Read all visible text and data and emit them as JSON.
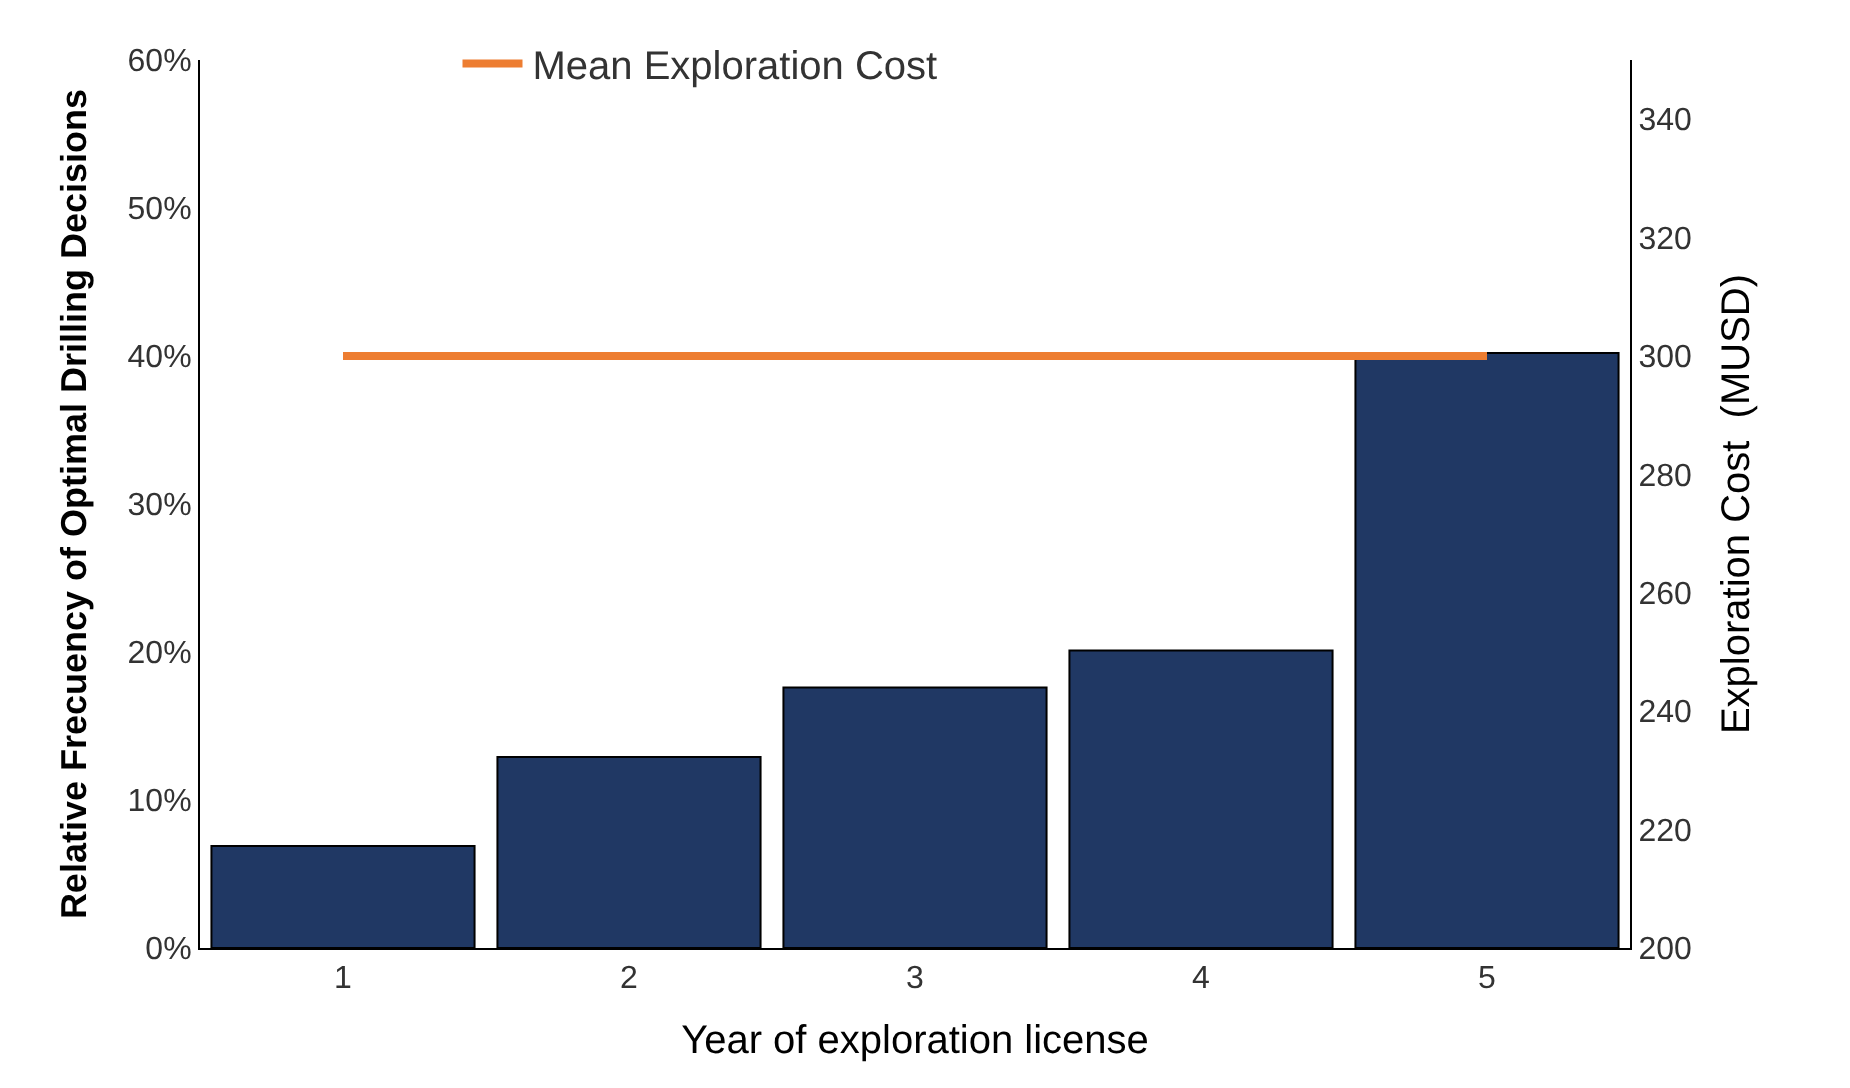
{
  "chart_data": {
    "type": "bar",
    "xlabel": "Year of exploration license",
    "ylabel": "Relative Frecuency of Optimal Drilling Decisions",
    "y2label": "Exploration Cost  (MUSD)",
    "categories": [
      "1",
      "2",
      "3",
      "4",
      "5"
    ],
    "series": [
      {
        "color": "#203864",
        "values": [
          0.069,
          0.129,
          0.176,
          0.201,
          0.402
        ]
      },
      {
        "name": "Mean Exploration Cost",
        "type": "line",
        "axis": "y2",
        "color": "#ed7d31",
        "values": [
          300,
          300,
          300,
          300,
          300
        ]
      }
    ],
    "ylim": [
      0,
      0.6
    ],
    "yticks": [
      {
        "value": 0,
        "label": "0%"
      },
      {
        "value": 0.1,
        "label": "10%"
      },
      {
        "value": 0.2,
        "label": "20%"
      },
      {
        "value": 0.3,
        "label": "30%"
      },
      {
        "value": 0.4,
        "label": "40%"
      },
      {
        "value": 0.5,
        "label": "50%"
      },
      {
        "value": 0.6,
        "label": "60%"
      }
    ],
    "y2lim": [
      200,
      350
    ],
    "y2ticks": [
      200,
      220,
      240,
      260,
      280,
      300,
      320,
      340
    ],
    "legend": "top",
    "marker": "none",
    "line_style": "solid"
  }
}
